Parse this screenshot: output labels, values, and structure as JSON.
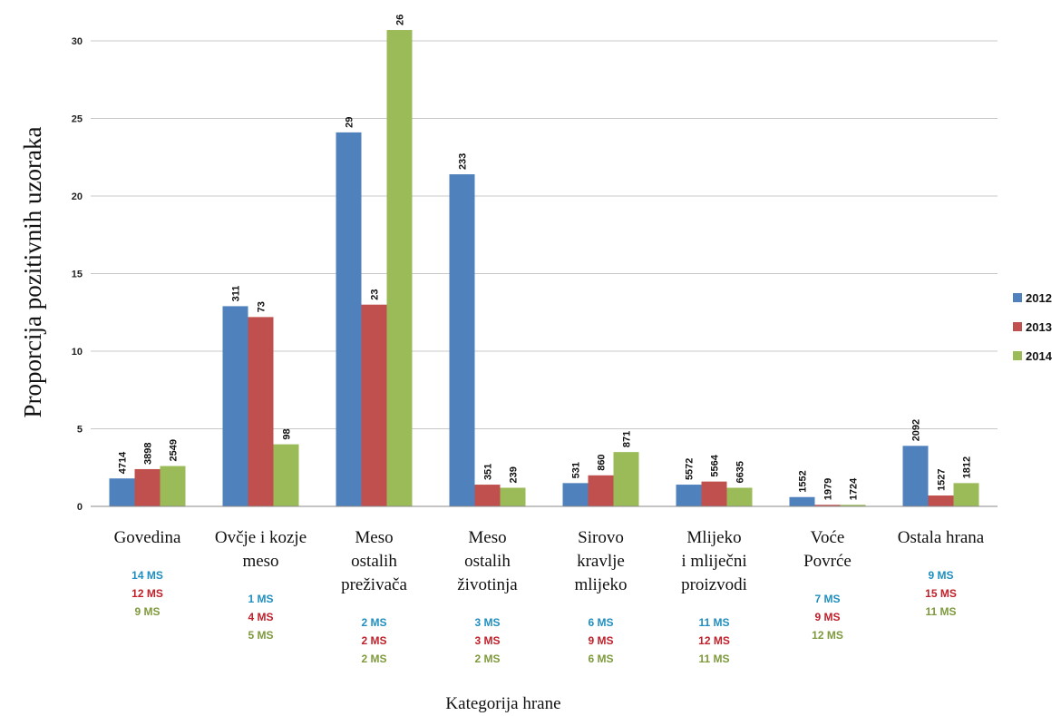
{
  "chart_data": {
    "type": "bar",
    "ylabel": "Proporcija pozitivnih uzoraka",
    "xlabel": "Kategorija hrane",
    "ylim": [
      0,
      32
    ],
    "yticks": [
      "0",
      "5",
      "10",
      "15",
      "20",
      "25",
      "30"
    ],
    "ytick_values": [
      0,
      5,
      10,
      15,
      20,
      25,
      30
    ],
    "grid": true,
    "legend_position": "right",
    "categories": [
      [
        "Govedina"
      ],
      [
        "Ovčje i kozje",
        "meso"
      ],
      [
        "Meso",
        "ostalih",
        "preživača"
      ],
      [
        "Meso",
        "ostalih",
        "životinja"
      ],
      [
        "Sirovo",
        "kravlje",
        "mlijeko"
      ],
      [
        "Mlijeko",
        "i mliječni",
        "proizvodi"
      ],
      [
        "Voće",
        "Povrće"
      ],
      [
        "Ostala hrana"
      ]
    ],
    "series": [
      {
        "name": "2012",
        "color": "#4f81bd",
        "values": [
          1.8,
          12.9,
          24.1,
          21.4,
          1.5,
          1.4,
          0.6,
          3.9
        ],
        "labels": [
          "4714",
          "311",
          "29",
          "233",
          "531",
          "5572",
          "1552",
          "2092"
        ],
        "ms": [
          "14 MS",
          "1 MS",
          "2 MS",
          "3 MS",
          "6 MS",
          "11 MS",
          "7 MS",
          "9 MS"
        ],
        "ms_color": "#1f8fc0"
      },
      {
        "name": "2013",
        "color": "#c0504d",
        "values": [
          2.4,
          12.2,
          13.0,
          1.4,
          2.0,
          1.6,
          0.1,
          0.7
        ],
        "labels": [
          "3898",
          "73",
          "23",
          "351",
          "860",
          "5564",
          "1979",
          "1527"
        ],
        "ms": [
          "12 MS",
          "4 MS",
          "2 MS",
          "3 MS",
          "9 MS",
          "12 MS",
          "9 MS",
          "15 MS"
        ],
        "ms_color": "#c0202a"
      },
      {
        "name": "2014",
        "color": "#9bbb59",
        "values": [
          2.6,
          4.0,
          30.7,
          1.2,
          3.5,
          1.2,
          0.1,
          1.5
        ],
        "labels": [
          "2549",
          "98",
          "26",
          "239",
          "871",
          "6635",
          "1724",
          "1812"
        ],
        "ms": [
          "9 MS",
          "5 MS",
          "2 MS",
          "2 MS",
          "6 MS",
          "11 MS",
          "12 MS",
          "11 MS"
        ],
        "ms_color": "#7f9a3c"
      }
    ]
  }
}
